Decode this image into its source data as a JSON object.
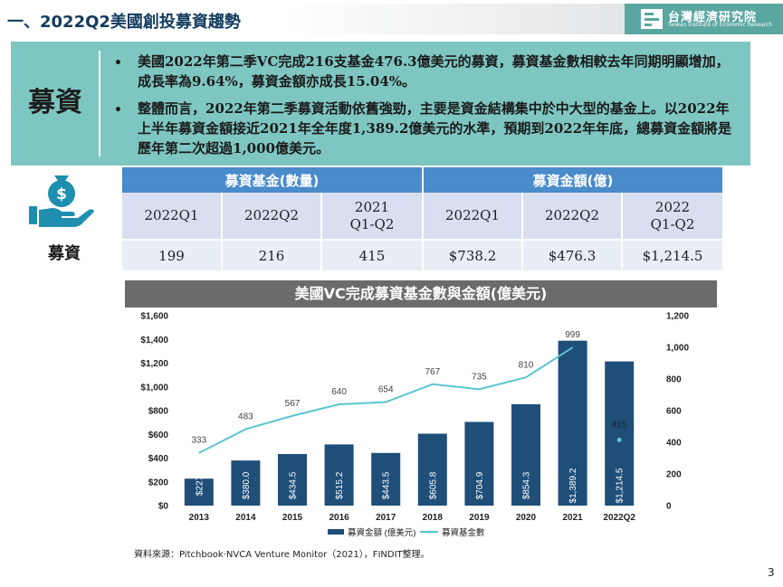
{
  "header": {
    "title": "一、2022Q2美國創投募資趨勢",
    "logo_cn": "台灣經濟研究院",
    "logo_en": "Taiwan Institute of Economic Research"
  },
  "summary": {
    "label": "募資",
    "bullet_symbol": "•",
    "bullets": [
      "美國2022年第二季VC完成216支基金476.3億美元的募資，募資基金數相較去年同期明顯增加，成長率為9.64%，募資金額亦成長15.04%。",
      "整體而言，2022年第二季募資活動依舊強勁，主要是資金結構集中於中大型的基金上。以2022年上半年募資金額接近2021年全年度1,389.2億美元的水準，預期到2022年年底，總募資金額將是歷年第二次超過1,000億美元。"
    ]
  },
  "icon": {
    "name": "money-hand-icon",
    "caption": "募資"
  },
  "table": {
    "group_headers": [
      "募資基金(數量)",
      "募資金額(億)"
    ],
    "sub_headers": [
      [
        "2022Q1"
      ],
      [
        "2022Q2"
      ],
      [
        "2021",
        "Q1-Q2"
      ],
      [
        "2022Q1"
      ],
      [
        "2022Q2"
      ],
      [
        "2022",
        "Q1-Q2"
      ]
    ],
    "values": [
      "199",
      "216",
      "415",
      "$738.2",
      "$476.3",
      "$1,214.5"
    ]
  },
  "chart_title": "美國VC完成募資基金數與金額(億美元)",
  "chart_data": {
    "type": "bar",
    "categories": [
      "2013",
      "2014",
      "2015",
      "2016",
      "2017",
      "2018",
      "2019",
      "2020",
      "2021",
      "2022Q2"
    ],
    "series": [
      {
        "name": "募資金額 (億美元)",
        "type": "bar",
        "axis": "left",
        "values": [
          227,
          380.0,
          434.5,
          515.2,
          443.5,
          605.8,
          704.9,
          854.3,
          1389.2,
          1214.5
        ],
        "labels": [
          "$227",
          "$380.0",
          "$434.5",
          "$515.2",
          "$443.5",
          "$605.8",
          "$704.9",
          "$854.3",
          "$1,389.2",
          "$1,214.5"
        ]
      },
      {
        "name": "募資基金數",
        "type": "line",
        "axis": "right",
        "values": [
          333,
          483,
          567,
          640,
          654,
          767,
          735,
          810,
          999,
          415
        ],
        "labels": [
          "333",
          "483",
          "567",
          "640",
          "654",
          "767",
          "735",
          "810",
          "999",
          "415"
        ]
      }
    ],
    "y_left": {
      "ylim": [
        0,
        1600
      ],
      "ticks": [
        "$0",
        "$200",
        "$400",
        "$600",
        "$800",
        "$1,000",
        "$1,200",
        "$1,400",
        "$1,600"
      ]
    },
    "y_right": {
      "ylim": [
        0,
        1200
      ],
      "ticks": [
        "0",
        "200",
        "400",
        "600",
        "800",
        "1,000",
        "1,200"
      ]
    },
    "legend_position": "bottom",
    "colors": {
      "bar": "#1f4e79",
      "line": "#5bc4d1"
    }
  },
  "source": "資料來源：Pitchbook‧NVCA Venture Monitor（2021），FINDIT整理。",
  "page_number": "3"
}
